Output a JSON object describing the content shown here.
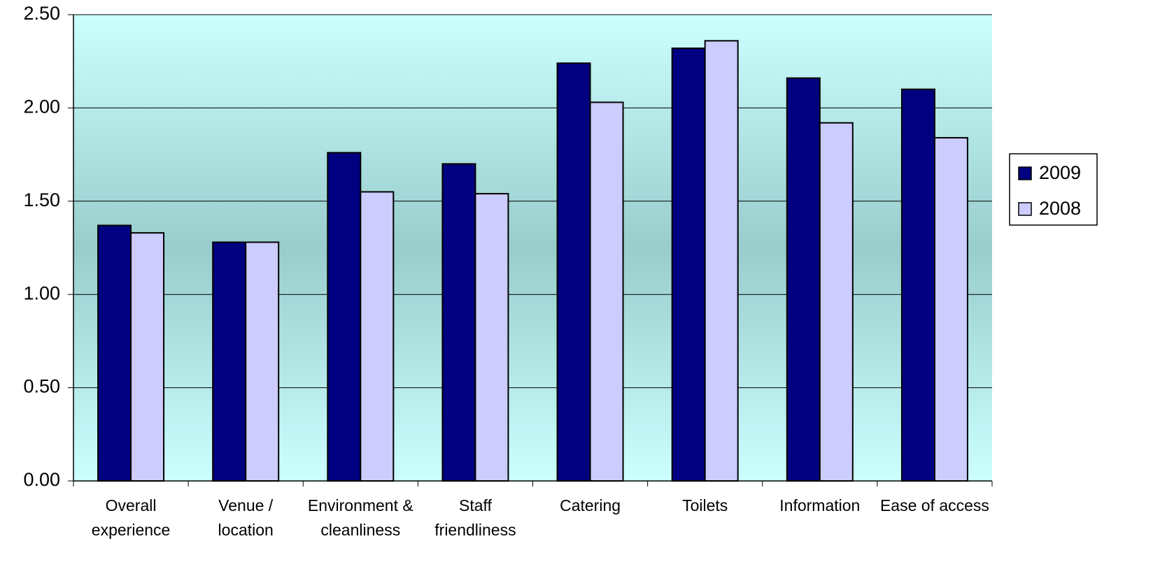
{
  "chart_data": {
    "type": "bar",
    "categories": [
      "Overall experience",
      "Venue / location",
      "Environment & cleanliness",
      "Staff friendliness",
      "Catering",
      "Toilets",
      "Information",
      "Ease of access"
    ],
    "series": [
      {
        "name": "2009",
        "color": "#000080",
        "values": [
          1.37,
          1.28,
          1.76,
          1.7,
          2.24,
          2.32,
          2.16,
          2.1
        ]
      },
      {
        "name": "2008",
        "color": "#ccccff",
        "values": [
          1.33,
          1.28,
          1.55,
          1.54,
          2.03,
          2.36,
          1.92,
          1.84
        ]
      }
    ],
    "ylim": [
      0,
      2.5
    ],
    "yticks": [
      {
        "value": 0,
        "label": "0.00"
      },
      {
        "value": 0.5,
        "label": "0.50"
      },
      {
        "value": 1,
        "label": "1.00"
      },
      {
        "value": 1.5,
        "label": "1.50"
      },
      {
        "value": 2,
        "label": "2.00"
      },
      {
        "value": 2.5,
        "label": "2.50"
      }
    ],
    "grid": true,
    "legend": "right"
  }
}
